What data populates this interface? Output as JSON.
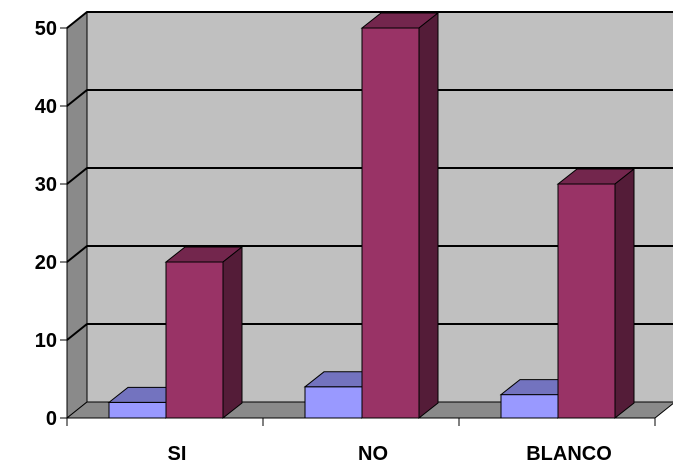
{
  "chart_data": {
    "type": "bar",
    "categories": [
      "SI",
      "NO",
      "BLANCO"
    ],
    "series": [
      {
        "values": [
          2,
          4,
          3
        ],
        "color": "#9999ff"
      },
      {
        "values": [
          20,
          50,
          30
        ],
        "color": "#993366"
      }
    ],
    "ylim": [
      0,
      50
    ],
    "yticks": [
      0,
      10,
      20,
      30,
      40,
      50
    ],
    "grid": true,
    "legend": "none",
    "three_d": true,
    "colors": {
      "wall": "#c0c0c0",
      "side_wall": "#8a8a8a",
      "floor": "#8a8a8a",
      "gridline": "#000000"
    }
  }
}
